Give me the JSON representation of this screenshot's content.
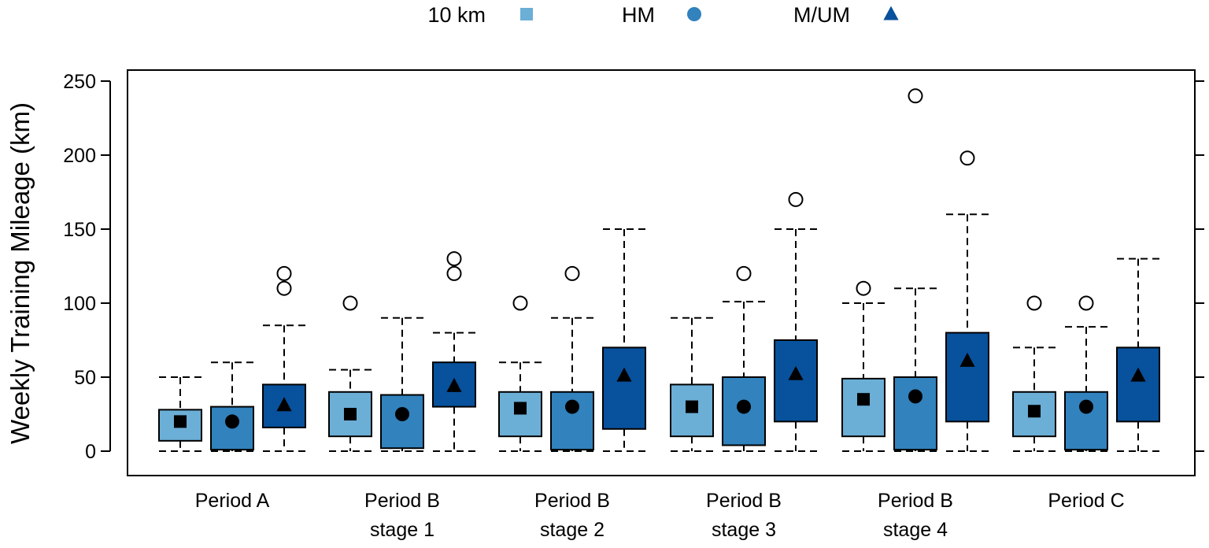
{
  "chart_data": {
    "type": "boxplot",
    "ylabel": "Weekly Training Mileage (km)",
    "xlabel": "",
    "ylim": [
      -17,
      258
    ],
    "yticks": [
      0,
      50,
      100,
      150,
      200,
      250
    ],
    "grid": false,
    "legend_position": "top",
    "categories": [
      [
        "Period A"
      ],
      [
        "Period B",
        "stage 1"
      ],
      [
        "Period B",
        "stage 2"
      ],
      [
        "Period B",
        "stage 3"
      ],
      [
        "Period B",
        "stage 4"
      ],
      [
        "Period C"
      ]
    ],
    "series": [
      {
        "name": "10 km",
        "color": "#6BAED6",
        "marker": "square",
        "stats": [
          {
            "whisker_low": 0,
            "q1": 7,
            "median": 20,
            "q3": 28,
            "whisker_high": 50,
            "outliers": []
          },
          {
            "whisker_low": 0,
            "q1": 10,
            "median": 25,
            "q3": 40,
            "whisker_high": 55,
            "outliers": [
              100
            ]
          },
          {
            "whisker_low": 0,
            "q1": 10,
            "median": 29,
            "q3": 40,
            "whisker_high": 60,
            "outliers": [
              100
            ]
          },
          {
            "whisker_low": 0,
            "q1": 10,
            "median": 30,
            "q3": 45,
            "whisker_high": 90,
            "outliers": []
          },
          {
            "whisker_low": 0,
            "q1": 10,
            "median": 35,
            "q3": 49,
            "whisker_high": 100,
            "outliers": [
              110
            ]
          },
          {
            "whisker_low": 0,
            "q1": 10,
            "median": 27,
            "q3": 40,
            "whisker_high": 70,
            "outliers": [
              100
            ]
          }
        ]
      },
      {
        "name": "HM",
        "color": "#3182BD",
        "marker": "circle",
        "stats": [
          {
            "whisker_low": 0,
            "q1": 1,
            "median": 20,
            "q3": 30,
            "whisker_high": 60,
            "outliers": []
          },
          {
            "whisker_low": 0,
            "q1": 2,
            "median": 25,
            "q3": 38,
            "whisker_high": 90,
            "outliers": []
          },
          {
            "whisker_low": 0,
            "q1": 1,
            "median": 30,
            "q3": 40,
            "whisker_high": 90,
            "outliers": [
              120
            ]
          },
          {
            "whisker_low": 0,
            "q1": 4,
            "median": 30,
            "q3": 50,
            "whisker_high": 101,
            "outliers": [
              120
            ]
          },
          {
            "whisker_low": 0,
            "q1": 1,
            "median": 37,
            "q3": 50,
            "whisker_high": 110,
            "outliers": [
              240
            ]
          },
          {
            "whisker_low": 0,
            "q1": 1,
            "median": 30,
            "q3": 40,
            "whisker_high": 84,
            "outliers": [
              100
            ]
          }
        ]
      },
      {
        "name": "M/UM",
        "color": "#08519C",
        "marker": "triangle",
        "stats": [
          {
            "whisker_low": 0,
            "q1": 16,
            "median": 31,
            "q3": 45,
            "whisker_high": 85,
            "outliers": [
              110,
              120
            ]
          },
          {
            "whisker_low": 0,
            "q1": 30,
            "median": 44,
            "q3": 60,
            "whisker_high": 80,
            "outliers": [
              120,
              130
            ]
          },
          {
            "whisker_low": 0,
            "q1": 15,
            "median": 51,
            "q3": 70,
            "whisker_high": 150,
            "outliers": []
          },
          {
            "whisker_low": 0,
            "q1": 20,
            "median": 52,
            "q3": 75,
            "whisker_high": 150,
            "outliers": [
              170
            ]
          },
          {
            "whisker_low": 0,
            "q1": 20,
            "median": 61,
            "q3": 80,
            "whisker_high": 160,
            "outliers": [
              198
            ]
          },
          {
            "whisker_low": 0,
            "q1": 20,
            "median": 51,
            "q3": 70,
            "whisker_high": 130,
            "outliers": []
          }
        ]
      }
    ]
  }
}
